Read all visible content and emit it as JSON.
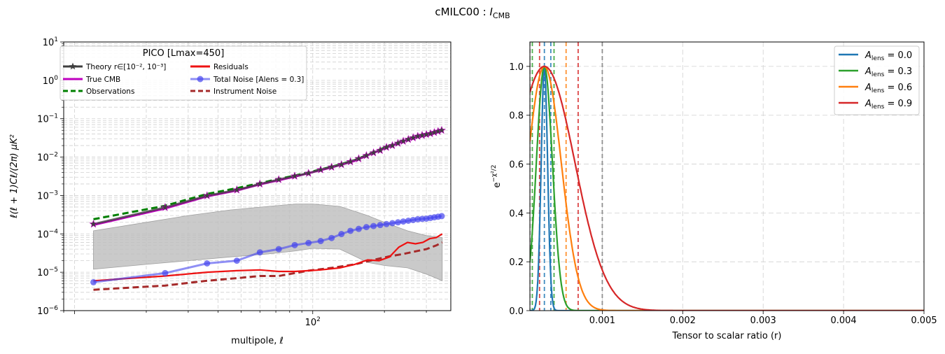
{
  "figure": {
    "suptitle_main": "cMILC00 : ",
    "suptitle_italic": "I",
    "suptitle_sub": "CMB"
  },
  "chart_data": [
    {
      "type": "line",
      "title": "",
      "xlabel": "multipole, ℓ",
      "ylabel": "ℓ(ℓ + 1)Cℓ/(2π)  μK²",
      "xscale": "log",
      "yscale": "log",
      "xlim": [
        9,
        380
      ],
      "ylim": [
        1e-06,
        10
      ],
      "xticks": [
        {
          "value": 100,
          "label": "10",
          "exp": "2"
        }
      ],
      "yticks": [
        {
          "value": 1e-06,
          "label": "10",
          "exp": "−6"
        },
        {
          "value": 1e-05,
          "label": "10",
          "exp": "−5"
        },
        {
          "value": 0.0001,
          "label": "10",
          "exp": "−4"
        },
        {
          "value": 0.001,
          "label": "10",
          "exp": "−3"
        },
        {
          "value": 0.01,
          "label": "10",
          "exp": "−2"
        },
        {
          "value": 0.1,
          "label": "10",
          "exp": "−1"
        },
        {
          "value": 1,
          "label": "10",
          "exp": "0"
        },
        {
          "value": 10,
          "label": "10",
          "exp": "1"
        }
      ],
      "grid": true,
      "legend": {
        "title": "PICO [Lmax=450]",
        "placement": "upper-left",
        "entries": [
          {
            "label": "Theory r∈[10⁻², 10⁻³]",
            "color": "#3f3f3f",
            "marker": "star",
            "style": "solid"
          },
          {
            "label": "True CMB",
            "color": "#bf00bf",
            "style": "solid"
          },
          {
            "label": "Observations",
            "color": "#008000",
            "style": "dashed"
          },
          {
            "label": "Residuals",
            "color": "#ee1111",
            "style": "solid"
          },
          {
            "label": "Total Noise [Alens = 0.3]",
            "color": "#4444ee",
            "marker": "circle",
            "style": "solid"
          },
          {
            "label": "Instrument Noise",
            "color": "#a52a2a",
            "style": "dashed"
          }
        ]
      },
      "band": {
        "name": "shaded range",
        "color": "#bdbdbd",
        "x": [
          12,
          20,
          30,
          45,
          65,
          85,
          100,
          130,
          170,
          200,
          250,
          300,
          350
        ],
        "upper": [
          0.00012,
          0.0002,
          0.0003,
          0.00042,
          0.00052,
          0.0006,
          0.0006,
          0.00052,
          0.0003,
          0.0002,
          0.00012,
          9e-05,
          8e-05
        ],
        "lower": [
          1.2e-05,
          1.6e-05,
          2e-05,
          2.5e-05,
          3e-05,
          3.6e-05,
          4.2e-05,
          4e-05,
          1.8e-05,
          1.5e-05,
          1.3e-05,
          9e-06,
          6e-06
        ]
      },
      "series": [
        {
          "name": "Theory",
          "color": "#3f3f3f",
          "marker": "star",
          "x": [
            12,
            24,
            36,
            48,
            60,
            72,
            84,
            96,
            108,
            120,
            132,
            144,
            156,
            168,
            180,
            192,
            204,
            216,
            228,
            240,
            252,
            264,
            276,
            288,
            300,
            312,
            324,
            336,
            348
          ],
          "y": [
            0.00018,
            0.00049,
            0.00099,
            0.0014,
            0.002,
            0.0026,
            0.0032,
            0.0038,
            0.0047,
            0.0055,
            0.0064,
            0.0076,
            0.0091,
            0.011,
            0.013,
            0.015,
            0.018,
            0.02,
            0.023,
            0.026,
            0.029,
            0.032,
            0.035,
            0.037,
            0.039,
            0.041,
            0.044,
            0.047,
            0.05
          ]
        },
        {
          "name": "True CMB",
          "color": "#bf00bf",
          "x": [
            12,
            24,
            36,
            48,
            60,
            72,
            84,
            96,
            120,
            150,
            180,
            210,
            240,
            270,
            300,
            330,
            350
          ],
          "y": [
            0.00017,
            0.00046,
            0.00095,
            0.00135,
            0.00195,
            0.0025,
            0.0031,
            0.0038,
            0.0054,
            0.008,
            0.013,
            0.019,
            0.026,
            0.033,
            0.039,
            0.046,
            0.05
          ]
        },
        {
          "name": "Observations",
          "color": "#008000",
          "dashed": true,
          "x": [
            12,
            24,
            36,
            48,
            60,
            72,
            84,
            96,
            120,
            150,
            180,
            210,
            240,
            270,
            300,
            330,
            350
          ],
          "y": [
            0.00024,
            0.00054,
            0.0011,
            0.00155,
            0.0021,
            0.0027,
            0.0033,
            0.004,
            0.0056,
            0.0083,
            0.0135,
            0.02,
            0.027,
            0.034,
            0.04,
            0.047,
            0.054
          ]
        },
        {
          "name": "Residuals",
          "color": "#ee1111",
          "x": [
            12,
            24,
            36,
            48,
            60,
            72,
            84,
            96,
            108,
            130,
            150,
            170,
            190,
            210,
            230,
            250,
            270,
            290,
            310,
            330,
            350
          ],
          "y": [
            6e-06,
            8e-06,
            1e-05,
            1.1e-05,
            1.15e-05,
            1.05e-05,
            1.05e-05,
            1.1e-05,
            1.15e-05,
            1.3e-05,
            1.6e-05,
            2.1e-05,
            2e-05,
            2.5e-05,
            4.5e-05,
            6e-05,
            5.5e-05,
            6e-05,
            7.5e-05,
            8e-05,
            0.0001
          ]
        },
        {
          "name": "Total Noise",
          "color": "#4444ee",
          "marker": "circle",
          "x": [
            12,
            24,
            36,
            48,
            60,
            72,
            84,
            96,
            108,
            120,
            132,
            144,
            156,
            168,
            180,
            192,
            204,
            216,
            228,
            240,
            252,
            264,
            276,
            288,
            300,
            312,
            324,
            336,
            348
          ],
          "y": [
            5.5e-06,
            9.5e-06,
            1.7e-05,
            2e-05,
            3.3e-05,
            4e-05,
            5.1e-05,
            5.8e-05,
            6.5e-05,
            7.8e-05,
            9.9e-05,
            0.00012,
            0.000135,
            0.00015,
            0.00016,
            0.00017,
            0.00018,
            0.00019,
            0.0002,
            0.00021,
            0.00022,
            0.00023,
            0.00024,
            0.000245,
            0.00025,
            0.00026,
            0.00027,
            0.00028,
            0.00029
          ]
        },
        {
          "name": "Instrument Noise",
          "color": "#a52a2a",
          "dashed": true,
          "x": [
            12,
            24,
            36,
            48,
            60,
            72,
            84,
            96,
            120,
            150,
            180,
            210,
            240,
            270,
            300,
            330,
            350
          ],
          "y": [
            3.5e-06,
            4.5e-06,
            6e-06,
            7e-06,
            8e-06,
            8e-06,
            9.5e-06,
            1.1e-05,
            1.3e-05,
            1.6e-05,
            2.1e-05,
            2.6e-05,
            3e-05,
            3.5e-05,
            4e-05,
            5e-05,
            6e-05
          ]
        }
      ]
    },
    {
      "type": "line",
      "title": "",
      "xlabel": "Tensor to scalar ratio (r)",
      "ylabel": "e^(−χ²/2)",
      "xlim": [
        0.0001,
        0.005
      ],
      "ylim": [
        0.0,
        1.1
      ],
      "xticks": [
        "0.001",
        "0.002",
        "0.003",
        "0.004",
        "0.005"
      ],
      "xtick_values": [
        0.001,
        0.002,
        0.003,
        0.004,
        0.005
      ],
      "yticks": [
        "0.0",
        "0.2",
        "0.4",
        "0.6",
        "0.8",
        "1.0"
      ],
      "ytick_values": [
        0.0,
        0.2,
        0.4,
        0.6,
        0.8,
        1.0
      ],
      "grid": true,
      "legend": {
        "placement": "upper-right"
      },
      "series": [
        {
          "name": "A_lens = 0.0",
          "label_sym": "A",
          "label_sub": "lens",
          "label_val": " = 0.0",
          "color": "#1f77b4",
          "peak": 0.00028,
          "sigma": 4e-05
        },
        {
          "name": "A_lens = 0.3",
          "label_sym": "A",
          "label_sub": "lens",
          "label_val": " = 0.3",
          "color": "#2ca02c",
          "peak": 0.00028,
          "sigma": 0.0001
        },
        {
          "name": "A_lens = 0.6",
          "label_sym": "A",
          "label_sub": "lens",
          "label_val": " = 0.6",
          "color": "#ff7f0e",
          "peak": 0.00028,
          "sigma": 0.00021
        },
        {
          "name": "A_lens = 0.9",
          "label_sym": "A",
          "label_sub": "lens",
          "label_val": " = 0.9",
          "color": "#d62728",
          "peak": 0.00028,
          "sigma": 0.00038
        }
      ],
      "vlines": [
        {
          "x": 0.00028,
          "color": "#1f77b4"
        },
        {
          "x": 0.00036,
          "color": "#1f77b4"
        },
        {
          "x": 0.00013,
          "color": "#2ca02c"
        },
        {
          "x": 0.0004,
          "color": "#2ca02c"
        },
        {
          "x": 0.00055,
          "color": "#ff7f0e"
        },
        {
          "x": 0.00022,
          "color": "#d62728"
        },
        {
          "x": 0.0007,
          "color": "#d62728"
        },
        {
          "x": 0.001,
          "color": "#7f7f7f"
        },
        {
          "x": 0.0001,
          "color": "#7f7f7f"
        }
      ]
    }
  ]
}
